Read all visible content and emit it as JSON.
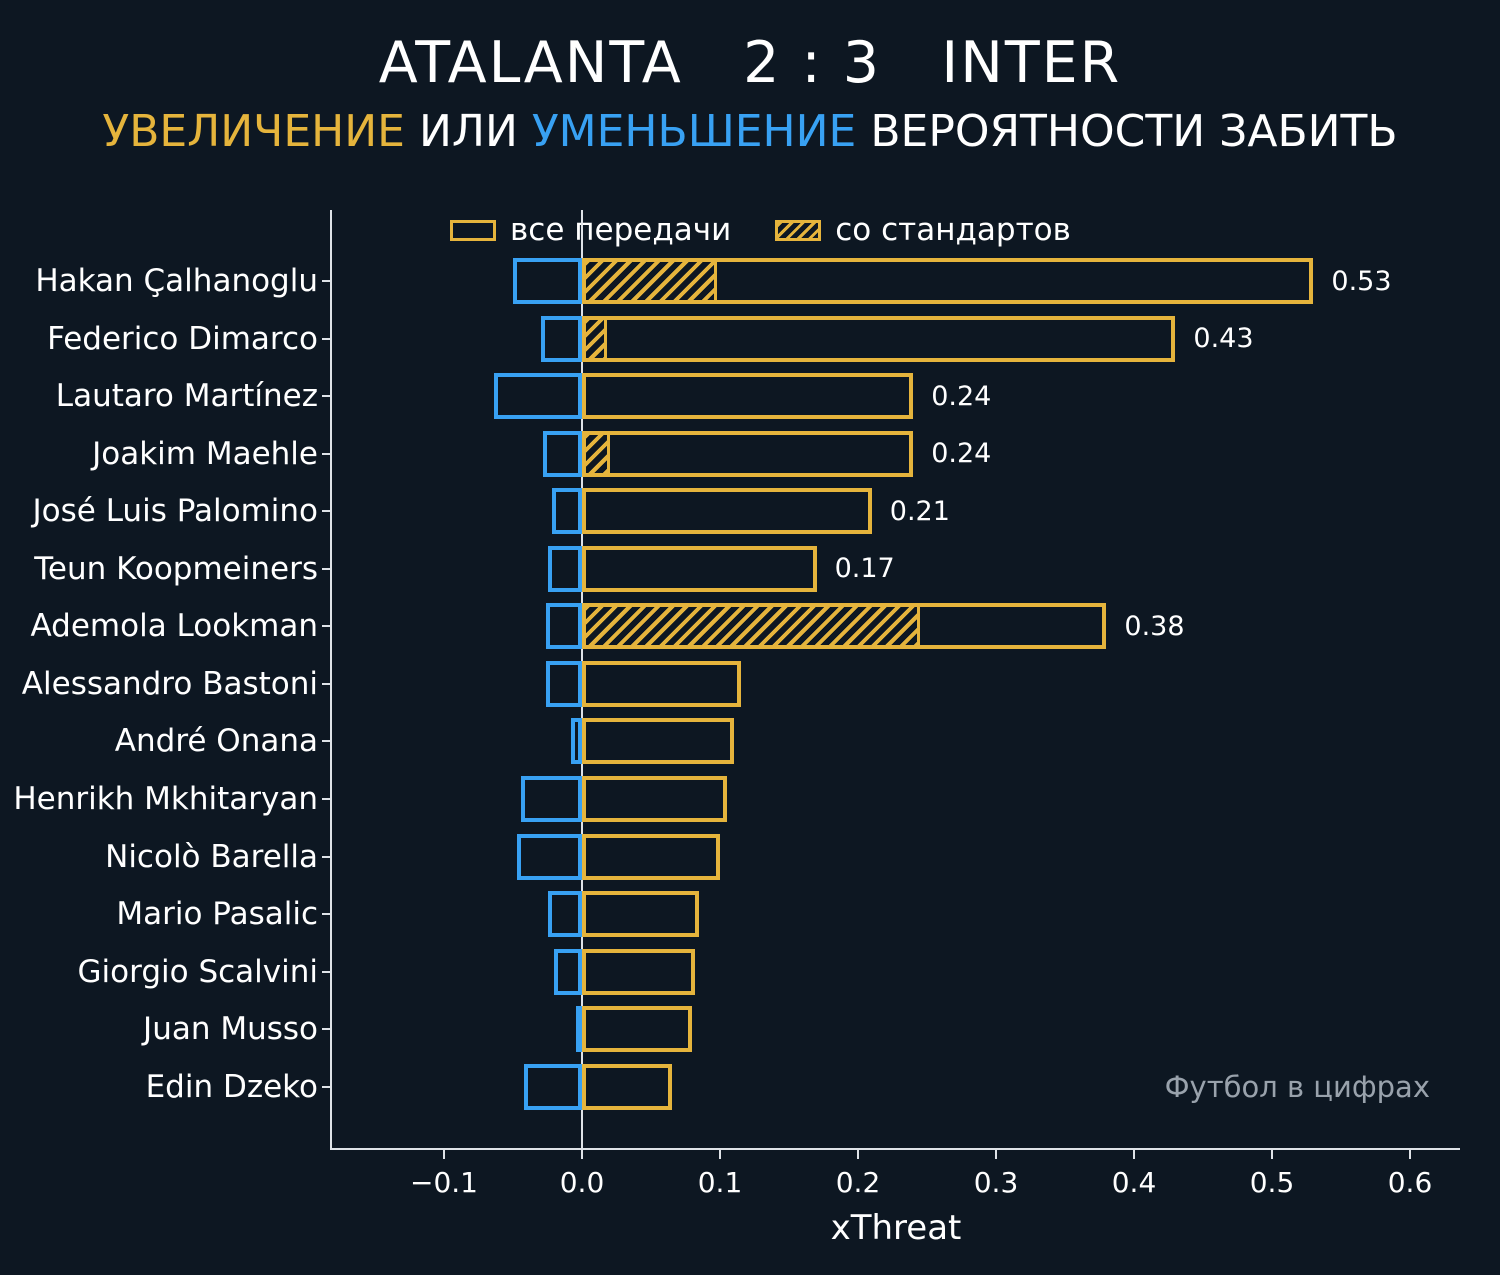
{
  "title": "ATALANTA   2 : 3   INTER",
  "subtitle": {
    "increase": "УВЕЛИЧЕНИЕ",
    "middle": " ИЛИ ",
    "decrease": "УМЕНЬШЕНИЕ",
    "rest": " ВЕРОЯТНОСТИ ЗАБИТЬ"
  },
  "legend": {
    "all_passes": "все передачи",
    "set_pieces": "со стандартов"
  },
  "watermark": "Футбол в цифрах",
  "colors": {
    "increase_yellow": "#e5b43c",
    "decrease_blue": "#38a1f3",
    "background": "#0d1722",
    "text": "#ffffff",
    "axis": "#dfe3e8",
    "watermark_gray": "#99a2ac"
  },
  "chart_data": {
    "type": "bar",
    "orientation": "horizontal",
    "title": "ATALANTA 2 : 3 INTER — УВЕЛИЧЕНИЕ ИЛИ УМЕНЬШЕНИЕ ВЕРОЯТНОСТИ ЗАБИТЬ",
    "xlabel": "xThreat",
    "ylabel": "",
    "xlim": [
      -0.181,
      0.637
    ],
    "grid": false,
    "legend_position": "top-inside",
    "legend_entries": [
      "все передачи",
      "со стандартов"
    ],
    "x_tick_values": [
      -0.1,
      0.0,
      0.1,
      0.2,
      0.3,
      0.4,
      0.5,
      0.6
    ],
    "x_tick_labels": [
      "−0.1",
      "0.0",
      "0.1",
      "0.2",
      "0.3",
      "0.4",
      "0.5",
      "0.6"
    ],
    "players": [
      {
        "name": "Hakan Çalhanoglu",
        "all_passes": 0.53,
        "decrease": -0.05,
        "set_pieces": 0.098,
        "value_label": "0.53"
      },
      {
        "name": "Federico Dimarco",
        "all_passes": 0.43,
        "decrease": -0.03,
        "set_pieces": 0.018,
        "value_label": "0.43"
      },
      {
        "name": "Lautaro Martínez",
        "all_passes": 0.24,
        "decrease": -0.064,
        "set_pieces": 0,
        "value_label": "0.24"
      },
      {
        "name": "Joakim Maehle",
        "all_passes": 0.24,
        "decrease": -0.028,
        "set_pieces": 0.02,
        "value_label": "0.24"
      },
      {
        "name": "José Luis Palomino",
        "all_passes": 0.21,
        "decrease": -0.022,
        "set_pieces": 0,
        "value_label": "0.21"
      },
      {
        "name": "Teun Koopmeiners",
        "all_passes": 0.17,
        "decrease": -0.025,
        "set_pieces": 0,
        "value_label": "0.17"
      },
      {
        "name": "Ademola Lookman",
        "all_passes": 0.38,
        "decrease": -0.026,
        "set_pieces": 0.245,
        "value_label": "0.38"
      },
      {
        "name": "Alessandro Bastoni",
        "all_passes": 0.115,
        "decrease": -0.026,
        "set_pieces": 0,
        "value_label": ""
      },
      {
        "name": "André Onana",
        "all_passes": 0.11,
        "decrease": -0.008,
        "set_pieces": 0,
        "value_label": ""
      },
      {
        "name": "Henrikh Mkhitaryan",
        "all_passes": 0.105,
        "decrease": -0.044,
        "set_pieces": 0,
        "value_label": ""
      },
      {
        "name": "Nicolò Barella",
        "all_passes": 0.1,
        "decrease": -0.047,
        "set_pieces": 0,
        "value_label": ""
      },
      {
        "name": "Mario Pasalic",
        "all_passes": 0.085,
        "decrease": -0.025,
        "set_pieces": 0,
        "value_label": ""
      },
      {
        "name": "Giorgio Scalvini",
        "all_passes": 0.082,
        "decrease": -0.02,
        "set_pieces": 0,
        "value_label": ""
      },
      {
        "name": "Juan Musso",
        "all_passes": 0.08,
        "decrease": -0.004,
        "set_pieces": 0,
        "value_label": ""
      },
      {
        "name": "Edin Dzeko",
        "all_passes": 0.065,
        "decrease": -0.042,
        "set_pieces": 0,
        "value_label": ""
      }
    ]
  }
}
